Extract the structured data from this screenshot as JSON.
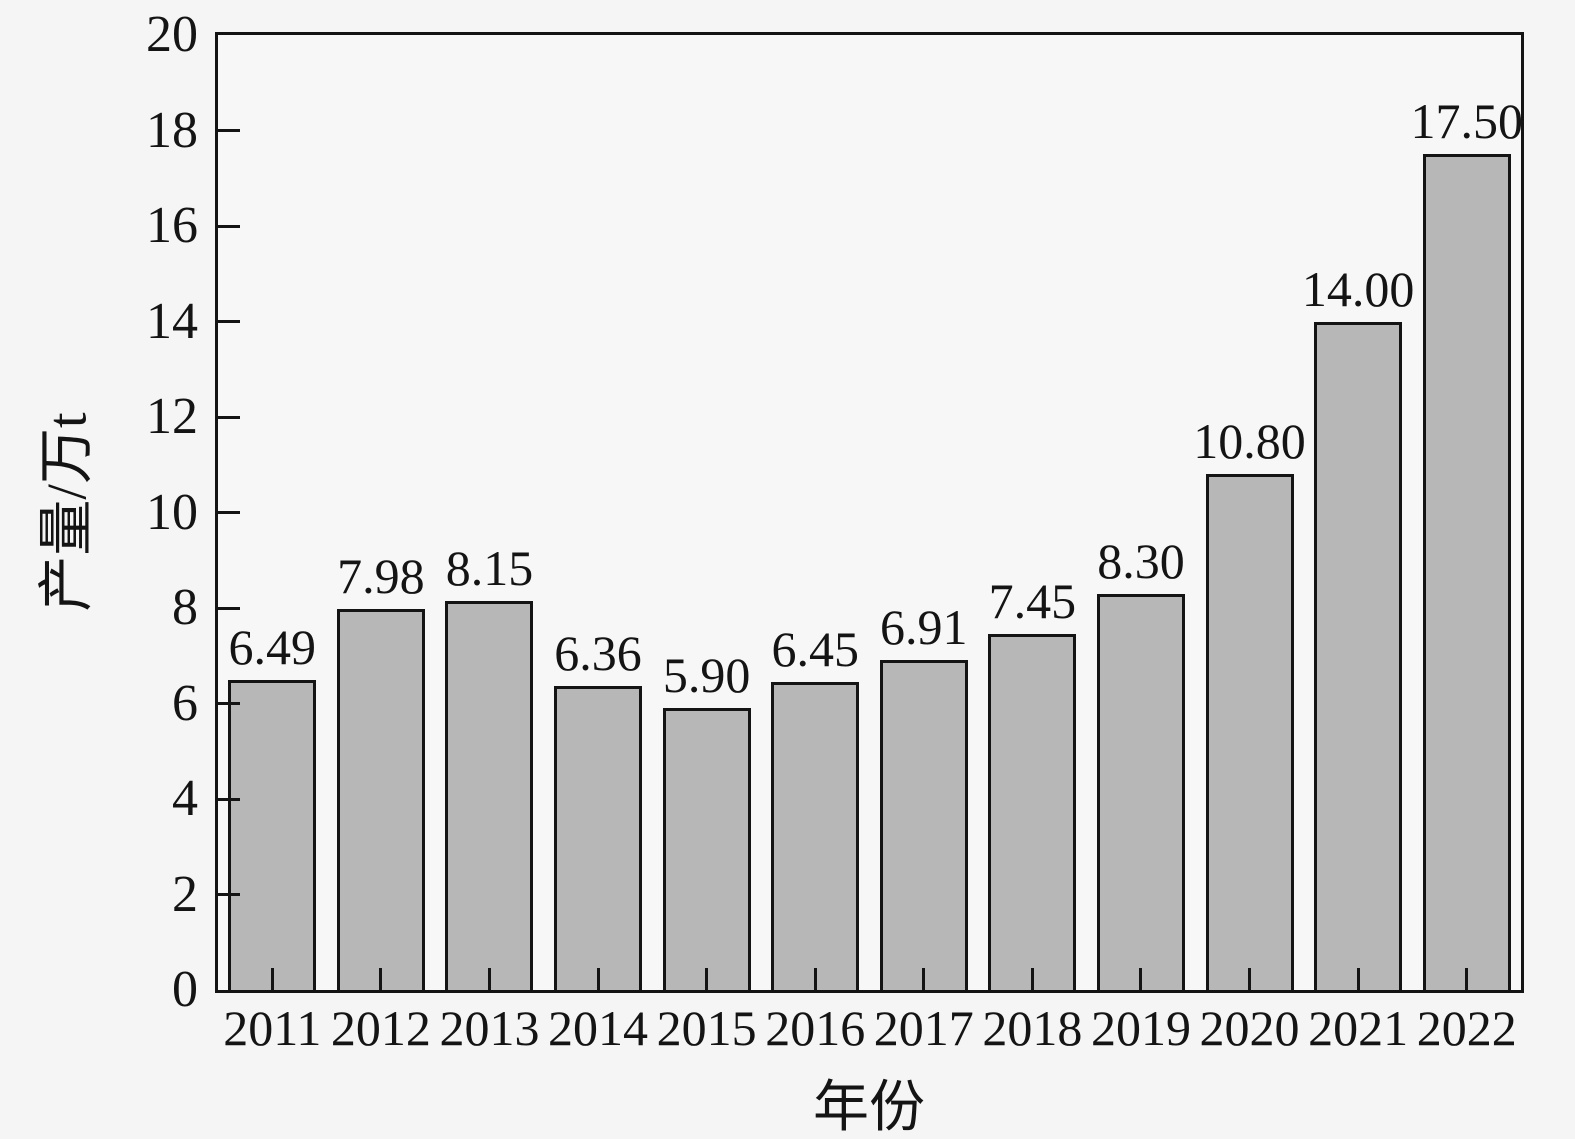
{
  "chart_data": {
    "type": "bar",
    "title": "",
    "xlabel": "年份",
    "ylabel": "产量/万t",
    "categories": [
      "2011",
      "2012",
      "2013",
      "2014",
      "2015",
      "2016",
      "2017",
      "2018",
      "2019",
      "2020",
      "2021",
      "2022"
    ],
    "values": [
      6.49,
      7.98,
      8.15,
      6.36,
      5.9,
      6.45,
      6.91,
      7.45,
      8.3,
      10.8,
      14.0,
      17.5
    ],
    "value_labels": [
      "6.49",
      "7.98",
      "8.15",
      "6.36",
      "5.90",
      "6.45",
      "6.91",
      "7.45",
      "8.30",
      "10.80",
      "14.00",
      "17.50"
    ],
    "ylim": [
      0,
      20
    ],
    "yticks": [
      0,
      2,
      4,
      6,
      8,
      10,
      12,
      14,
      16,
      18,
      20
    ],
    "grid": false,
    "legend": null,
    "colors": {
      "background": "#f5f5f5",
      "plot_background": "#f7f7f7",
      "bar_fill": "#b7b7b7",
      "bar_border": "#141414",
      "axis": "#141414",
      "text": "#141414"
    }
  }
}
